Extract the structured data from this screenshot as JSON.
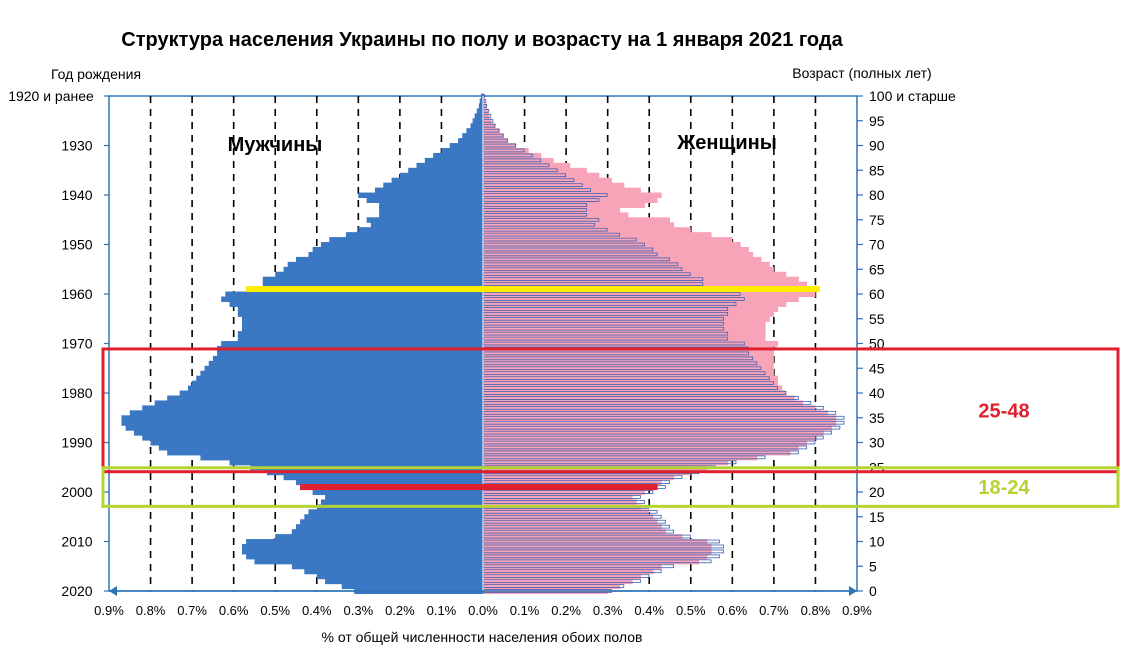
{
  "chart_data": {
    "type": "population_pyramid",
    "title": "Структура населения Украины по полу и возрасту на 1 января 2021 года",
    "left_axis_title": "Год рождения",
    "right_axis_title": "Возраст (полных лет)",
    "xlabel": "% от общей численности населения обоих полов",
    "x_ticks": [
      "0.9%",
      "0.8%",
      "0.7%",
      "0.6%",
      "0.5%",
      "0.4%",
      "0.3%",
      "0.2%",
      "0.1%",
      "0.0%",
      "0.1%",
      "0.2%",
      "0.3%",
      "0.4%",
      "0.5%",
      "0.6%",
      "0.7%",
      "0.8%",
      "0.9%"
    ],
    "x_range": [
      -0.9,
      0.9
    ],
    "age_range": [
      0,
      100
    ],
    "birth_year_ticks": [
      {
        "label": "1920 и ранее",
        "age": 100
      },
      {
        "label": "1930",
        "age": 90
      },
      {
        "label": "1940",
        "age": 80
      },
      {
        "label": "1950",
        "age": 70
      },
      {
        "label": "1960",
        "age": 60
      },
      {
        "label": "1970",
        "age": 50
      },
      {
        "label": "1980",
        "age": 40
      },
      {
        "label": "1990",
        "age": 30
      },
      {
        "label": "2000",
        "age": 20
      },
      {
        "label": "2010",
        "age": 10
      },
      {
        "label": "2020",
        "age": 0
      }
    ],
    "age_ticks": [
      "0",
      "5",
      "10",
      "15",
      "20",
      "25",
      "30",
      "35",
      "40",
      "45",
      "50",
      "55",
      "60",
      "65",
      "70",
      "75",
      "80",
      "85",
      "90",
      "95",
      "100 и старше"
    ],
    "male_label": "Мужчины",
    "female_label": "Женщины",
    "male_pct": [
      0.31,
      0.34,
      0.38,
      0.4,
      0.43,
      0.46,
      0.55,
      0.57,
      0.58,
      0.58,
      0.57,
      0.5,
      0.46,
      0.45,
      0.44,
      0.43,
      0.42,
      0.4,
      0.39,
      0.38,
      0.41,
      0.44,
      0.45,
      0.48,
      0.52,
      0.56,
      0.61,
      0.68,
      0.76,
      0.78,
      0.8,
      0.82,
      0.84,
      0.86,
      0.87,
      0.87,
      0.85,
      0.82,
      0.79,
      0.76,
      0.73,
      0.71,
      0.7,
      0.69,
      0.68,
      0.67,
      0.66,
      0.65,
      0.64,
      0.64,
      0.63,
      0.59,
      0.59,
      0.58,
      0.58,
      0.58,
      0.59,
      0.59,
      0.61,
      0.63,
      0.62,
      0.57,
      0.53,
      0.53,
      0.5,
      0.48,
      0.47,
      0.45,
      0.42,
      0.41,
      0.39,
      0.37,
      0.33,
      0.3,
      0.27,
      0.28,
      0.25,
      0.25,
      0.25,
      0.28,
      0.3,
      0.26,
      0.24,
      0.22,
      0.2,
      0.18,
      0.16,
      0.14,
      0.12,
      0.1,
      0.08,
      0.06,
      0.05,
      0.04,
      0.03,
      0.025,
      0.02,
      0.015,
      0.01,
      0.008,
      0.005
    ],
    "female_pct": [
      0.3,
      0.33,
      0.36,
      0.38,
      0.41,
      0.43,
      0.52,
      0.54,
      0.55,
      0.55,
      0.54,
      0.48,
      0.44,
      0.43,
      0.42,
      0.41,
      0.4,
      0.38,
      0.37,
      0.36,
      0.39,
      0.42,
      0.43,
      0.46,
      0.5,
      0.54,
      0.59,
      0.66,
      0.74,
      0.76,
      0.78,
      0.8,
      0.82,
      0.84,
      0.85,
      0.85,
      0.83,
      0.8,
      0.77,
      0.75,
      0.73,
      0.72,
      0.71,
      0.71,
      0.7,
      0.7,
      0.7,
      0.7,
      0.7,
      0.7,
      0.71,
      0.68,
      0.68,
      0.68,
      0.68,
      0.69,
      0.7,
      0.71,
      0.73,
      0.76,
      0.8,
      0.81,
      0.78,
      0.76,
      0.73,
      0.7,
      0.69,
      0.67,
      0.65,
      0.64,
      0.62,
      0.6,
      0.55,
      0.5,
      0.46,
      0.45,
      0.35,
      0.33,
      0.39,
      0.42,
      0.43,
      0.38,
      0.34,
      0.31,
      0.28,
      0.25,
      0.21,
      0.17,
      0.14,
      0.11,
      0.08,
      0.06,
      0.05,
      0.04,
      0.03,
      0.02,
      0.015,
      0.012,
      0.008,
      0.005,
      0.003
    ],
    "series": [
      {
        "name": "Мужчины",
        "color": "#3a78c4"
      },
      {
        "name": "Женщины",
        "color": "#f7a3b8"
      }
    ],
    "highlights": [
      {
        "age": 61,
        "color": "#ffee00"
      },
      {
        "age": 21,
        "color": "#e0202e"
      }
    ],
    "bands": [
      {
        "label": "25-48",
        "from_age": 25,
        "to_age": 48,
        "color": "#e0202e"
      },
      {
        "label": "18-24",
        "from_age": 18,
        "to_age": 24,
        "color": "#b6d334"
      }
    ]
  }
}
